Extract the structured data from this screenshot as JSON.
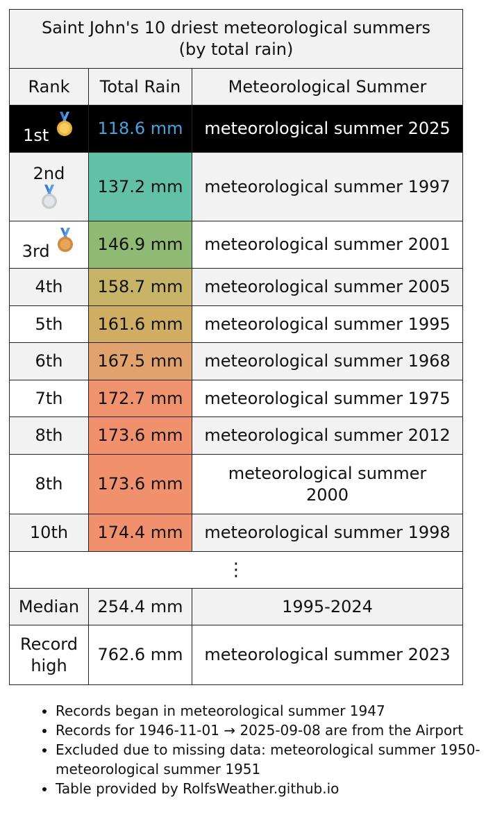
{
  "title_line1": "Saint John's 10 driest meteorological summers",
  "title_line2": "(by total rain)",
  "headers": {
    "rank": "Rank",
    "rain": "Total Rain",
    "season": "Meteorological Summer"
  },
  "colors": {
    "black_row": "#000000",
    "black_row_value": "#4aa3df",
    "scale": [
      "#62c0a6",
      "#8fba73",
      "#c7b467",
      "#cfae63",
      "#e2a26d",
      "#ef926d",
      "#f1906d",
      "#f1906d",
      "#f1906d"
    ]
  },
  "rows": [
    {
      "rank": "1st",
      "medal": "gold-medal-icon",
      "rain": "118.6 mm",
      "season": "meteorological summer 2025"
    },
    {
      "rank": "2nd",
      "medal": "silver-medal-icon",
      "rain": "137.2 mm",
      "season": "meteorological summer 1997"
    },
    {
      "rank": "3rd",
      "medal": "bronze-medal-icon",
      "rain": "146.9 mm",
      "season": "meteorological summer 2001"
    },
    {
      "rank": "4th",
      "rain": "158.7 mm",
      "season": "meteorological summer 2005"
    },
    {
      "rank": "5th",
      "rain": "161.6 mm",
      "season": "meteorological summer 1995"
    },
    {
      "rank": "6th",
      "rain": "167.5 mm",
      "season": "meteorological summer 1968"
    },
    {
      "rank": "7th",
      "rain": "172.7 mm",
      "season": "meteorological summer 1975"
    },
    {
      "rank": "8th",
      "rain": "173.6 mm",
      "season": "meteorological summer 2012"
    },
    {
      "rank": "8th",
      "rain": "173.6 mm",
      "season_line1": "meteorological summer",
      "season_line2": "2000"
    },
    {
      "rank": "10th",
      "rain": "174.4 mm",
      "season": "meteorological summer 1998"
    }
  ],
  "ellipsis": "⋮",
  "median": {
    "label": "Median",
    "rain": "254.4 mm",
    "season": "1995-2024"
  },
  "record_high": {
    "label_line1": "Record",
    "label_line2": "high",
    "rain": "762.6 mm",
    "season": "meteorological summer 2023"
  },
  "notes": [
    "Records began in meteorological summer 1947",
    "Records for 1946-11-01 → 2025-09-08 are from the Airport",
    "Excluded due to missing data: meteorological summer 1950-meteorological summer 1951",
    "Table provided by RolfsWeather.github.io"
  ]
}
